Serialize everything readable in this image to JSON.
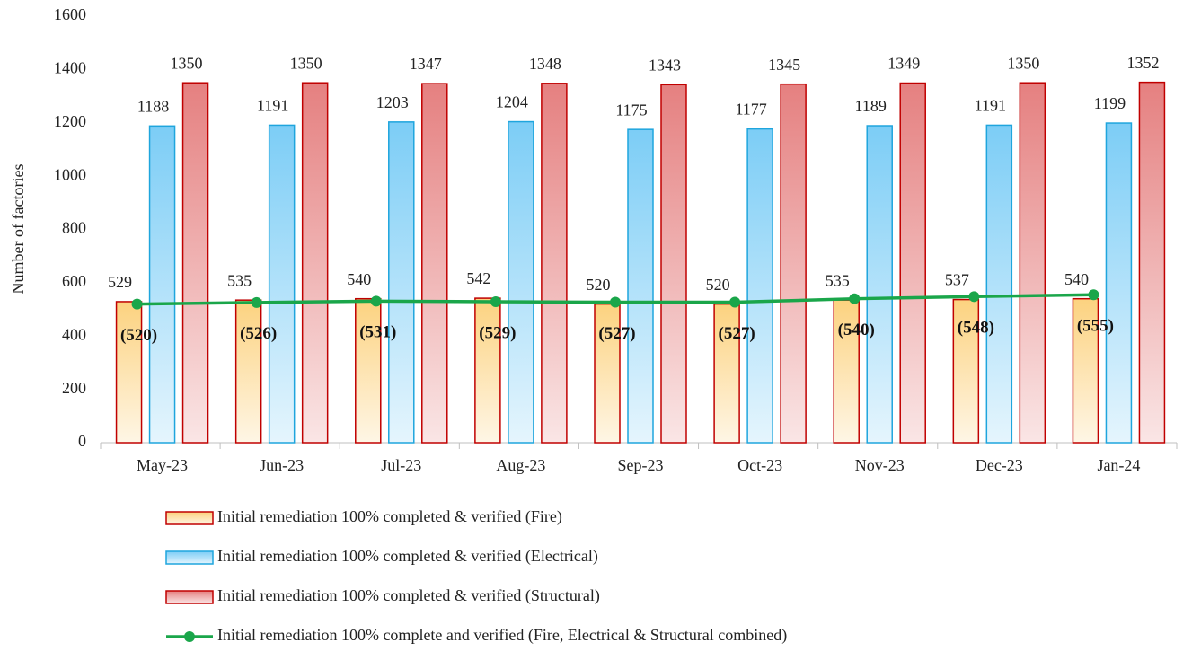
{
  "chart_data": {
    "type": "bar",
    "y_label": "Number of factories",
    "categories": [
      "May-23",
      "Jun-23",
      "Jul-23",
      "Aug-23",
      "Sep-23",
      "Oct-23",
      "Nov-23",
      "Dec-23",
      "Jan-24"
    ],
    "ylim": [
      0,
      1600
    ],
    "yticks": [
      0,
      200,
      400,
      600,
      800,
      1000,
      1200,
      1400,
      1600
    ],
    "series": [
      {
        "name": "Initial remediation 100% completed & verified (Fire)",
        "color": "#fcd27f",
        "edge": "#c00000",
        "values": [
          529,
          535,
          540,
          542,
          520,
          520,
          535,
          537,
          540
        ]
      },
      {
        "name": "Initial remediation 100% completed & verified (Electrical)",
        "color": "#7ccdf6",
        "edge": "#1fa5dd",
        "values": [
          1188,
          1191,
          1203,
          1204,
          1175,
          1177,
          1189,
          1191,
          1199
        ]
      },
      {
        "name": "Initial remediation 100% completed & verified (Structural)",
        "color": "#e58080",
        "edge": "#c00000",
        "values": [
          1350,
          1350,
          1347,
          1348,
          1343,
          1345,
          1349,
          1350,
          1352
        ]
      },
      {
        "name": "Initial remediation 100% complete and verified (Fire, Electrical & Structural combined)",
        "type": "line",
        "color": "#1aa64a",
        "values": [
          520,
          526,
          531,
          529,
          527,
          527,
          540,
          548,
          555
        ],
        "value_labels": [
          "(520)",
          "(526)",
          "(531)",
          "(529)",
          "(527)",
          "(527)",
          "(540)",
          "(548)",
          "(555)"
        ]
      }
    ]
  }
}
